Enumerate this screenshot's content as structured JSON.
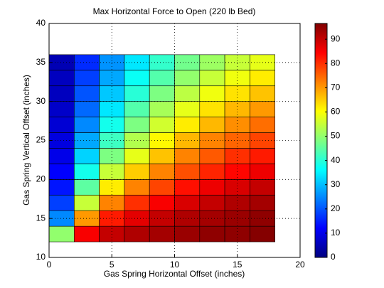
{
  "chart_data": {
    "type": "heatmap",
    "title": "Max Horizontal Force to Open (220 lb Bed)",
    "xlabel": "Gas Spring Horizontal Offset (inches)",
    "ylabel": "Gas Spring Vertical Offset (inches)",
    "x": [
      0,
      2,
      4,
      6,
      8,
      10,
      12,
      14,
      16,
      18
    ],
    "y": [
      12,
      14,
      16,
      18,
      20,
      22,
      24,
      26,
      28,
      30,
      32,
      34,
      36
    ],
    "values": [
      [
        50,
        85,
        90,
        92,
        93,
        94,
        95,
        95,
        96
      ],
      [
        25,
        70,
        82,
        87,
        90,
        92,
        93,
        94,
        95
      ],
      [
        18,
        55,
        72,
        80,
        85,
        88,
        90,
        92,
        93
      ],
      [
        14,
        45,
        62,
        72,
        78,
        83,
        86,
        88,
        90
      ],
      [
        12,
        38,
        55,
        65,
        72,
        77,
        81,
        84,
        86
      ],
      [
        10,
        32,
        48,
        58,
        66,
        72,
        76,
        80,
        82
      ],
      [
        9,
        28,
        42,
        53,
        61,
        67,
        72,
        75,
        78
      ],
      [
        8,
        25,
        38,
        48,
        56,
        62,
        67,
        71,
        74
      ],
      [
        7,
        22,
        34,
        44,
        52,
        58,
        63,
        67,
        70
      ],
      [
        6,
        20,
        31,
        40,
        48,
        54,
        59,
        63,
        66
      ],
      [
        6,
        18,
        28,
        37,
        44,
        50,
        55,
        59,
        62
      ],
      [
        5,
        16,
        26,
        34,
        41,
        47,
        51,
        55,
        58
      ]
    ],
    "xlim": [
      0,
      20
    ],
    "xticks": [
      0,
      5,
      10,
      15,
      20
    ],
    "ylim": [
      10,
      40
    ],
    "yticks": [
      10,
      15,
      20,
      25,
      30,
      35,
      40
    ],
    "grid": true,
    "colormap": "jet",
    "clim": [
      0,
      96.5
    ],
    "cticks": [
      0,
      10,
      20,
      30,
      40,
      50,
      60,
      70,
      80,
      90
    ]
  }
}
